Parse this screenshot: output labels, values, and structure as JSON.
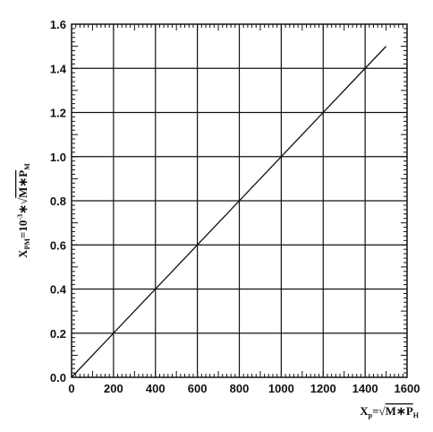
{
  "chart_data": {
    "type": "line",
    "xlabel": {
      "base": "X",
      "sub": "p",
      "rest1": "=√",
      "rest2": "M∗P",
      "sub2": "H"
    },
    "ylabel": {
      "base": "X",
      "sub": "PM",
      "rest1": "=10",
      "sup": "-3",
      "rest2": "∗√",
      "rest3": "M∗P",
      "sub2": "M"
    },
    "xlim": [
      0,
      1600
    ],
    "ylim": [
      0,
      1.6
    ],
    "x_ticks": [
      "0",
      "200",
      "400",
      "600",
      "800",
      "1000",
      "1200",
      "1400",
      "1600"
    ],
    "y_ticks": [
      "0.0",
      "0.2",
      "0.4",
      "0.6",
      "0.8",
      "1.0",
      "1.2",
      "1.4",
      "1.6"
    ],
    "grid": true,
    "series": [
      {
        "x": [
          0,
          1500
        ],
        "y": [
          0,
          1.5
        ]
      }
    ],
    "colors": {
      "line": "#111111",
      "grid": "#111111",
      "frame": "#111111"
    }
  }
}
